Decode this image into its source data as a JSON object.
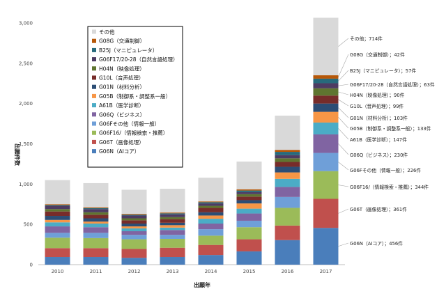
{
  "chart_data": {
    "type": "bar",
    "stacked": true,
    "xlabel": "出願年",
    "ylabel": "出願件数",
    "ylim": [
      0,
      3000
    ],
    "yticks": [
      0,
      500,
      1000,
      1500,
      2000,
      2500,
      3000
    ],
    "ytick_labels": [
      "0",
      "500",
      "1,000",
      "1,500",
      "2,000",
      "2,500",
      "3,000"
    ],
    "grid": false,
    "legend_position": "top-left",
    "categories": [
      "2010",
      "2011",
      "2012",
      "2013",
      "2014",
      "2015",
      "2016",
      "2017"
    ],
    "series": [
      {
        "name": "G06N（AIコア）",
        "color": "#4a7ebb",
        "values": [
          95,
          95,
          85,
          95,
          120,
          165,
          305,
          456
        ]
      },
      {
        "name": "G06T（画像処理）",
        "color": "#c0504d",
        "values": [
          110,
          110,
          110,
          115,
          125,
          150,
          180,
          361
        ]
      },
      {
        "name": "G06F16/（情報検索・推薦）",
        "color": "#9bbb59",
        "values": [
          130,
          125,
          120,
          110,
          115,
          150,
          220,
          344
        ]
      },
      {
        "name": "G06Fその他（情報一般）",
        "color": "#6f9fd8",
        "values": [
          60,
          65,
          55,
          50,
          80,
          80,
          135,
          226
        ]
      },
      {
        "name": "G06Q（ビジネス）",
        "color": "#8064a2",
        "values": [
          80,
          70,
          45,
          60,
          70,
          90,
          125,
          230
        ]
      },
      {
        "name": "A61B（医学診断）",
        "color": "#4bacc6",
        "values": [
          50,
          45,
          35,
          30,
          60,
          60,
          100,
          147
        ]
      },
      {
        "name": "G05B（制御系・調整系一般）",
        "color": "#f79646",
        "values": [
          30,
          25,
          25,
          30,
          40,
          65,
          80,
          133
        ]
      },
      {
        "name": "G01N（材料分析）",
        "color": "#2c4d75",
        "values": [
          50,
          40,
          35,
          30,
          40,
          40,
          70,
          103
        ]
      },
      {
        "name": "G10L（音声処理）",
        "color": "#772c2a",
        "values": [
          55,
          45,
          40,
          45,
          55,
          45,
          60,
          99
        ]
      },
      {
        "name": "H04N（映像処理）",
        "color": "#5f7530",
        "values": [
          30,
          30,
          25,
          25,
          25,
          30,
          45,
          90
        ]
      },
      {
        "name": "G06F17/20-28（自然言語処理）",
        "color": "#4d3b62",
        "values": [
          40,
          40,
          35,
          35,
          30,
          25,
          40,
          63
        ]
      },
      {
        "name": "B25J（マニピュレータ）",
        "color": "#276a7c",
        "values": [
          10,
          12,
          10,
          12,
          15,
          20,
          40,
          57
        ]
      },
      {
        "name": "G08G（交通制御）",
        "color": "#b65708",
        "values": [
          10,
          10,
          10,
          10,
          10,
          15,
          25,
          42
        ]
      },
      {
        "name": "その他",
        "color": "#d9d9d9",
        "values": [
          300,
          300,
          300,
          295,
          295,
          345,
          425,
          714
        ]
      }
    ],
    "annotations": [
      {
        "series": "その他",
        "text": "その他；714件"
      },
      {
        "series": "G08G（交通制御）",
        "text": "G08G（交通制御）；42件"
      },
      {
        "series": "B25J（マニピュレータ）",
        "text": "B25J（マニピュレータ）；57件"
      },
      {
        "series": "G06F17/20-28（自然言語処理）",
        "text": "G06F17/20-28（自然言語処理）；63件"
      },
      {
        "series": "H04N（映像処理）",
        "text": "H04N（映像処理）；90件"
      },
      {
        "series": "G10L（音声処理）",
        "text": "G10L（音声処理）；99件"
      },
      {
        "series": "G01N（材料分析）",
        "text": "G01N（材料分析）；103件"
      },
      {
        "series": "G05B（制御系・調整系一般）",
        "text": "G05B（制御系・調整系一般）；133件"
      },
      {
        "series": "A61B（医学診断）",
        "text": "A61B（医学診断）；147件"
      },
      {
        "series": "G06Q（ビジネス）",
        "text": "G06Q（ビジネス）；230件"
      },
      {
        "series": "G06Fその他（情報一般）",
        "text": "G06Fその他（情報一般）；226件"
      },
      {
        "series": "G06F16/（情報検索・推薦）",
        "text": "G06F16/（情報検索・推薦）；344件"
      },
      {
        "series": "G06T（画像処理）",
        "text": "G06T（画像処理）；361件"
      },
      {
        "series": "G06N（AIコア）",
        "text": "G06N（AIコア）；456件"
      }
    ]
  }
}
